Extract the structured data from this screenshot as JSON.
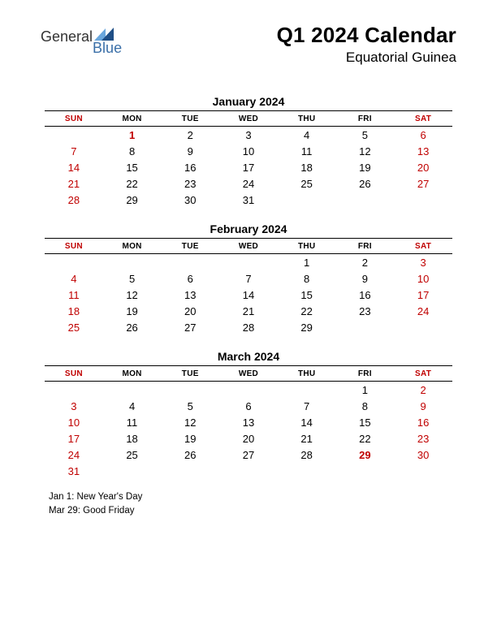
{
  "header": {
    "logo_text1": "General",
    "logo_text2": "Blue",
    "title": "Q1 2024 Calendar",
    "subtitle": "Equatorial Guinea"
  },
  "colors": {
    "weekend": "#c00000",
    "holiday": "#c00000",
    "text": "#000000",
    "logo_blue": "#3a6fa8",
    "tri_light": "#6aa7dd",
    "tri_dark": "#1f4f86"
  },
  "day_headers": [
    "SUN",
    "MON",
    "TUE",
    "WED",
    "THU",
    "FRI",
    "SAT"
  ],
  "months": [
    {
      "title": "January 2024",
      "weeks": [
        [
          "",
          "1",
          "2",
          "3",
          "4",
          "5",
          "6"
        ],
        [
          "7",
          "8",
          "9",
          "10",
          "11",
          "12",
          "13"
        ],
        [
          "14",
          "15",
          "16",
          "17",
          "18",
          "19",
          "20"
        ],
        [
          "21",
          "22",
          "23",
          "24",
          "25",
          "26",
          "27"
        ],
        [
          "28",
          "29",
          "30",
          "31",
          "",
          "",
          ""
        ]
      ],
      "holidays": [
        "1"
      ]
    },
    {
      "title": "February 2024",
      "weeks": [
        [
          "",
          "",
          "",
          "",
          "1",
          "2",
          "3"
        ],
        [
          "4",
          "5",
          "6",
          "7",
          "8",
          "9",
          "10"
        ],
        [
          "11",
          "12",
          "13",
          "14",
          "15",
          "16",
          "17"
        ],
        [
          "18",
          "19",
          "20",
          "21",
          "22",
          "23",
          "24"
        ],
        [
          "25",
          "26",
          "27",
          "28",
          "29",
          "",
          ""
        ]
      ],
      "holidays": []
    },
    {
      "title": "March 2024",
      "weeks": [
        [
          "",
          "",
          "",
          "",
          "",
          "1",
          "2"
        ],
        [
          "3",
          "4",
          "5",
          "6",
          "7",
          "8",
          "9"
        ],
        [
          "10",
          "11",
          "12",
          "13",
          "14",
          "15",
          "16"
        ],
        [
          "17",
          "18",
          "19",
          "20",
          "21",
          "22",
          "23"
        ],
        [
          "24",
          "25",
          "26",
          "27",
          "28",
          "29",
          "30"
        ],
        [
          "31",
          "",
          "",
          "",
          "",
          "",
          ""
        ]
      ],
      "holidays": [
        "29"
      ]
    }
  ],
  "holiday_list": [
    "Jan 1: New Year's Day",
    "Mar 29: Good Friday"
  ]
}
